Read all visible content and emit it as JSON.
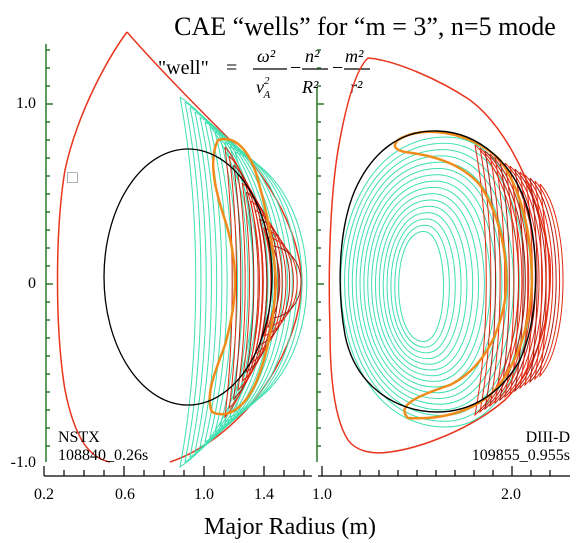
{
  "title": "CAE “wells” for “m = 3”, n=5 mode",
  "formula": {
    "lhs": "\"well\"",
    "equals": "=",
    "t1_num": "ω²",
    "t1_den": "v",
    "t1_den_sub": "A",
    "t1_den_sup": "2",
    "t2_num": "n²",
    "t2_den": "R²",
    "t3_num": "m²",
    "t3_den": "r²",
    "minus": "−"
  },
  "y_ticks": [
    "1.0",
    "0",
    "-1.0"
  ],
  "left_panel": {
    "name": "NSTX",
    "shot": "108840_0.26s",
    "x_ticks": [
      "0.2",
      "0.6",
      "1.0",
      "1.4"
    ],
    "marker": "□"
  },
  "right_panel": {
    "name": "DIII-D",
    "shot": "109855_0.955s",
    "x_ticks": [
      "1.0",
      "2.0"
    ]
  },
  "xlabel": "Major Radius (m)",
  "colors": {
    "boundary": "#e8351e",
    "well_cyan": "#3ee0b0",
    "well_red": "#e02810",
    "well_dark": "#a81a10",
    "well_orange": "#f08c1a",
    "black_surface": "#000000",
    "axis_green": "#2a7a2a"
  }
}
